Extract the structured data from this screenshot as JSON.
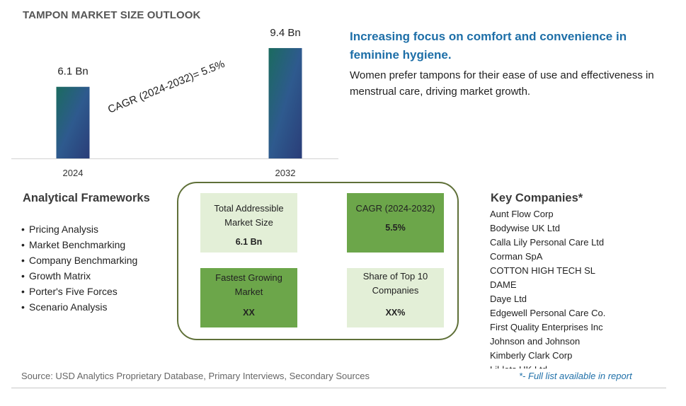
{
  "title": "TAMPON MARKET SIZE OUTLOOK",
  "chart_data": {
    "type": "bar",
    "categories": [
      "2024",
      "2032"
    ],
    "values": [
      6.1,
      9.4
    ],
    "value_labels": [
      "6.1 Bn",
      "9.4 Bn"
    ],
    "annotation": "CAGR (2024-2032)=  5.5%",
    "ylim": [
      0,
      10
    ],
    "grid": false,
    "bar_gradient": [
      "#1b6b5f",
      "#2e5a8e",
      "#2a3d78"
    ]
  },
  "headline": {
    "title": "Increasing focus on comfort and convenience in feminine hygiene.",
    "description": "Women prefer tampons for their ease of use and effectiveness in menstrual care, driving market growth."
  },
  "frameworks": {
    "title": "Analytical Frameworks",
    "items": [
      "Pricing Analysis",
      "Market Benchmarking",
      "Company Benchmarking",
      "Growth Matrix",
      "Porter's Five Forces",
      "Scenario Analysis"
    ]
  },
  "metrics": {
    "tam": {
      "label": "Total Addressible Market Size",
      "value": "6.1 Bn"
    },
    "cagr": {
      "label": "CAGR (2024-2032)",
      "value": "5.5%"
    },
    "fastest": {
      "label": "Fastest Growing Market",
      "value": "XX"
    },
    "share": {
      "label": "Share of Top 10 Companies",
      "value": "XX%"
    }
  },
  "companies": {
    "title": "Key Companies*",
    "items": [
      "Aunt Flow Corp",
      "Bodywise UK Ltd",
      "Calla Lily Personal Care Ltd",
      "Corman SpA",
      "COTTON HIGH TECH SL",
      "DAME",
      "Daye Ltd",
      "Edgewell Personal Care Co.",
      "First Quality Enterprises Inc",
      "Johnson and Johnson",
      "Kimberly Clark Corp",
      "Lil-lets UK Ltd"
    ]
  },
  "footer": {
    "source": "Source: USD Analytics Proprietary Database, Primary Interviews, Secondary Sources",
    "full_list": "*- Full list available in report"
  }
}
